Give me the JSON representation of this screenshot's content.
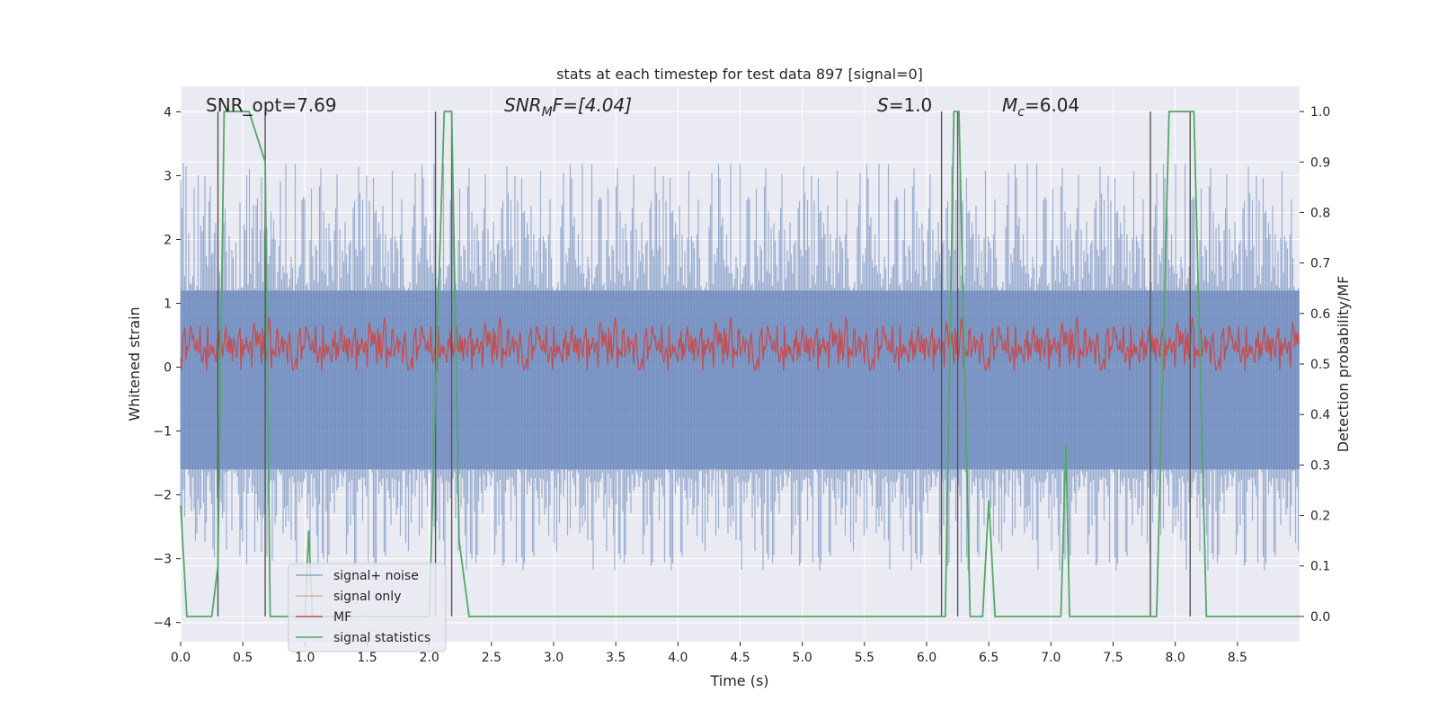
{
  "chart_data": {
    "type": "line",
    "title": "stats at each timestep for test data 897 [signal=0]",
    "xlabel": "Time (s)",
    "ylabel": "Whitened strain",
    "ylabel_right": "Detection probability/MF",
    "xlim": [
      0.0,
      9.0
    ],
    "ylim": [
      -4.3,
      4.4
    ],
    "ylim_right": [
      -0.05,
      1.05
    ],
    "x_ticks": [
      "0.0",
      "0.5",
      "1.0",
      "1.5",
      "2.0",
      "2.5",
      "3.0",
      "3.5",
      "4.0",
      "4.5",
      "5.0",
      "5.5",
      "6.0",
      "6.5",
      "7.0",
      "7.5",
      "8.0",
      "8.5"
    ],
    "y_ticks": [
      "4",
      "3",
      "2",
      "1",
      "0",
      "−1",
      "−2",
      "−3",
      "−4"
    ],
    "y_ticks_right": [
      "1.0",
      "0.9",
      "0.8",
      "0.7",
      "0.6",
      "0.5",
      "0.4",
      "0.3",
      "0.2",
      "0.1",
      "0.0"
    ],
    "grid": true,
    "legend_position": "lower-left",
    "annotations": {
      "snr_opt": "SNR_opt=7.69",
      "snr_mf_prefix": "SNR",
      "snr_mf_sub": "M",
      "snr_mf_suffix": "F=[4.04]",
      "s_var": "S",
      "s_value": "=1.0",
      "mc_var": "M",
      "mc_sub": "c",
      "mc_value": "=6.04"
    },
    "series": [
      {
        "name": "signal+ noise",
        "color": "#4c72b0",
        "description": "whitened strain noise, amplitude roughly ±3"
      },
      {
        "name": "signal only",
        "color": "#dd8452",
        "values": []
      },
      {
        "name": "MF",
        "color": "#c44e52",
        "axis": "right",
        "description": "matched filter output fluctuating around 0.5"
      },
      {
        "name": "signal statistics",
        "color": "#55a868",
        "axis": "right",
        "x": [
          0.0,
          0.05,
          0.25,
          0.3,
          0.35,
          0.55,
          0.68,
          0.72,
          1.0,
          1.03,
          1.06,
          2.0,
          2.05,
          2.12,
          2.18,
          2.24,
          2.32,
          2.45,
          6.1,
          6.15,
          6.22,
          6.26,
          6.35,
          6.45,
          6.5,
          6.55,
          6.65,
          7.02,
          7.08,
          7.12,
          7.15,
          7.2,
          7.3,
          7.8,
          7.85,
          7.95,
          8.1,
          8.15,
          8.25,
          8.9,
          9.0
        ],
        "values": [
          0.22,
          0.0,
          0.0,
          0.1,
          1.0,
          1.0,
          0.9,
          0.0,
          0.0,
          0.17,
          0.0,
          0.0,
          0.45,
          1.0,
          1.0,
          0.15,
          0.0,
          0.0,
          0.0,
          0.0,
          1.0,
          1.0,
          0.0,
          0.0,
          0.23,
          0.0,
          0.0,
          0.0,
          0.0,
          0.34,
          0.0,
          0.0,
          0.0,
          0.0,
          0.0,
          1.0,
          1.0,
          1.0,
          0.0,
          0.0,
          0.0
        ]
      }
    ],
    "vertical_markers_x": [
      0.3,
      0.68,
      2.05,
      2.18,
      6.12,
      6.25,
      7.8,
      8.12
    ]
  }
}
